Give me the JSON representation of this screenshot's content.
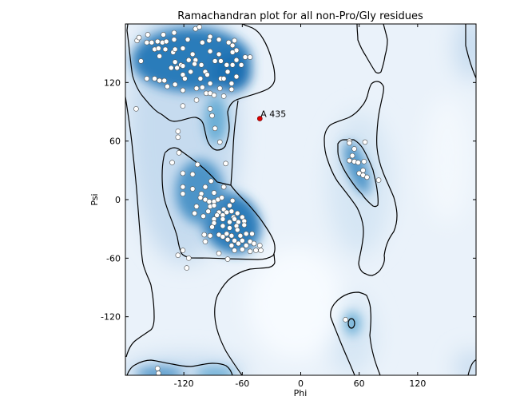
{
  "chart_data": {
    "type": "scatter",
    "title": "Ramachandran plot for all non-Pro/Gly residues",
    "xlabel": "Phi",
    "ylabel": "Psi",
    "xlim": [
      -180,
      180
    ],
    "ylim": [
      -180,
      180
    ],
    "xticks": [
      "-120",
      "-60",
      "0",
      "60",
      "120"
    ],
    "yticks": [
      "120",
      "60",
      "0",
      "-60",
      "-120"
    ],
    "xtick_values": [
      -120,
      -60,
      0,
      60,
      120
    ],
    "ytick_values": [
      120,
      60,
      0,
      -60,
      -120
    ],
    "grid": false,
    "background": "density contour (blue)",
    "colors": {
      "density": "#1f6fb2",
      "points": "#ffffff",
      "outlier": "#e00000",
      "contour": "#000000"
    },
    "points": [
      [
        -168,
        163
      ],
      [
        -166,
        166
      ],
      [
        -157,
        169
      ],
      [
        -141,
        169
      ],
      [
        -130,
        171
      ],
      [
        -108,
        175
      ],
      [
        -104,
        177
      ],
      [
        -158,
        161
      ],
      [
        -153,
        161
      ],
      [
        -147,
        162
      ],
      [
        -142,
        161
      ],
      [
        -138,
        162
      ],
      [
        -130,
        164
      ],
      [
        -116,
        164
      ],
      [
        -101,
        161
      ],
      [
        -94,
        163
      ],
      [
        -93,
        167
      ],
      [
        -84,
        164
      ],
      [
        -74,
        161
      ],
      [
        -68,
        163
      ],
      [
        -70,
        158
      ],
      [
        -164,
        142
      ],
      [
        -150,
        154
      ],
      [
        -146,
        155
      ],
      [
        -139,
        154
      ],
      [
        -131,
        151
      ],
      [
        -129,
        154
      ],
      [
        -121,
        155
      ],
      [
        -145,
        147
      ],
      [
        -111,
        149
      ],
      [
        -115,
        143
      ],
      [
        -108,
        143
      ],
      [
        -129,
        141
      ],
      [
        -123,
        138
      ],
      [
        -133,
        135
      ],
      [
        -127,
        135
      ],
      [
        -121,
        137
      ],
      [
        -109,
        139
      ],
      [
        -102,
        138
      ],
      [
        -113,
        131
      ],
      [
        -121,
        128
      ],
      [
        -119,
        124
      ],
      [
        -103,
        124
      ],
      [
        -98,
        131
      ],
      [
        -96,
        128
      ],
      [
        -93,
        152
      ],
      [
        -84,
        149
      ],
      [
        -88,
        142
      ],
      [
        -82,
        142
      ],
      [
        -76,
        138
      ],
      [
        -70,
        138
      ],
      [
        -66,
        153
      ],
      [
        -70,
        151
      ],
      [
        -66,
        143
      ],
      [
        -61,
        138
      ],
      [
        -57,
        146
      ],
      [
        -52,
        146
      ],
      [
        -75,
        131
      ],
      [
        -66,
        126
      ],
      [
        -82,
        124
      ],
      [
        -79,
        124
      ],
      [
        -158,
        124
      ],
      [
        -150,
        124
      ],
      [
        -145,
        122
      ],
      [
        -140,
        122
      ],
      [
        -137,
        116
      ],
      [
        -129,
        118
      ],
      [
        -121,
        112
      ],
      [
        -107,
        114
      ],
      [
        -101,
        115
      ],
      [
        -93,
        119
      ],
      [
        -97,
        109
      ],
      [
        -93,
        109
      ],
      [
        -89,
        107
      ],
      [
        -83,
        114
      ],
      [
        -79,
        106
      ],
      [
        -71,
        119
      ],
      [
        -71,
        113
      ],
      [
        -107,
        102
      ],
      [
        -169,
        93
      ],
      [
        -121,
        96
      ],
      [
        -93,
        93
      ],
      [
        -91,
        86
      ],
      [
        -88,
        73
      ],
      [
        -83,
        59
      ],
      [
        -126,
        70
      ],
      [
        -126,
        64
      ],
      [
        -125,
        48
      ],
      [
        -132,
        38
      ],
      [
        -106,
        36
      ],
      [
        -77,
        37
      ],
      [
        -121,
        27
      ],
      [
        -111,
        26
      ],
      [
        -92,
        19
      ],
      [
        -121,
        13
      ],
      [
        -111,
        11
      ],
      [
        -98,
        13
      ],
      [
        -79,
        13
      ],
      [
        -121,
        6
      ],
      [
        -102,
        6
      ],
      [
        -89,
        7
      ],
      [
        -103,
        2
      ],
      [
        -98,
        0
      ],
      [
        -94,
        -2
      ],
      [
        -89,
        -2
      ],
      [
        -85,
        0
      ],
      [
        -81,
        2
      ],
      [
        -70,
        -1
      ],
      [
        -107,
        -7
      ],
      [
        -93,
        -7
      ],
      [
        -89,
        -6
      ],
      [
        -79,
        -10
      ],
      [
        -73,
        -6
      ],
      [
        -109,
        -14
      ],
      [
        -95,
        -12
      ],
      [
        -84,
        -13
      ],
      [
        -76,
        -13
      ],
      [
        -71,
        -12
      ],
      [
        -65,
        -14
      ],
      [
        -100,
        -17
      ],
      [
        -86,
        -16
      ],
      [
        -80,
        -16
      ],
      [
        -69,
        -18
      ],
      [
        -60,
        -18
      ],
      [
        -89,
        -20
      ],
      [
        -80,
        -20
      ],
      [
        -68,
        -20
      ],
      [
        -58,
        -22
      ],
      [
        -89,
        -24
      ],
      [
        -73,
        -23
      ],
      [
        -64,
        -23
      ],
      [
        -91,
        -28
      ],
      [
        -80,
        -27
      ],
      [
        -73,
        -29
      ],
      [
        -66,
        -27
      ],
      [
        -58,
        -26
      ],
      [
        -65,
        -31
      ],
      [
        -99,
        -36
      ],
      [
        -93,
        -37
      ],
      [
        -84,
        -36
      ],
      [
        -80,
        -38
      ],
      [
        -76,
        -35
      ],
      [
        -71,
        -37
      ],
      [
        -62,
        -37
      ],
      [
        -56,
        -35
      ],
      [
        -50,
        -35
      ],
      [
        -98,
        -43
      ],
      [
        -75,
        -41
      ],
      [
        -68,
        -42
      ],
      [
        -60,
        -42
      ],
      [
        -52,
        -43
      ],
      [
        -71,
        -47
      ],
      [
        -64,
        -45
      ],
      [
        -56,
        -47
      ],
      [
        -48,
        -45
      ],
      [
        -42,
        -47
      ],
      [
        -68,
        -52
      ],
      [
        -60,
        -51
      ],
      [
        -52,
        -53
      ],
      [
        -46,
        -52
      ],
      [
        -41,
        -52
      ],
      [
        -121,
        -52
      ],
      [
        -126,
        -57
      ],
      [
        -115,
        -60
      ],
      [
        -84,
        -55
      ],
      [
        -75,
        -61
      ],
      [
        -117,
        -70
      ],
      [
        50,
        60
      ],
      [
        50,
        58
      ],
      [
        66,
        59
      ],
      [
        55,
        52
      ],
      [
        53,
        45
      ],
      [
        50,
        40
      ],
      [
        55,
        39
      ],
      [
        59,
        38
      ],
      [
        65,
        39
      ],
      [
        64,
        30
      ],
      [
        60,
        27
      ],
      [
        64,
        25
      ],
      [
        68,
        23
      ],
      [
        80,
        20
      ],
      [
        46,
        -123
      ],
      [
        -147,
        -173
      ],
      [
        -146,
        -178
      ]
    ],
    "outliers": [
      {
        "phi": -42,
        "psi": 83,
        "label": "A 435"
      }
    ]
  }
}
